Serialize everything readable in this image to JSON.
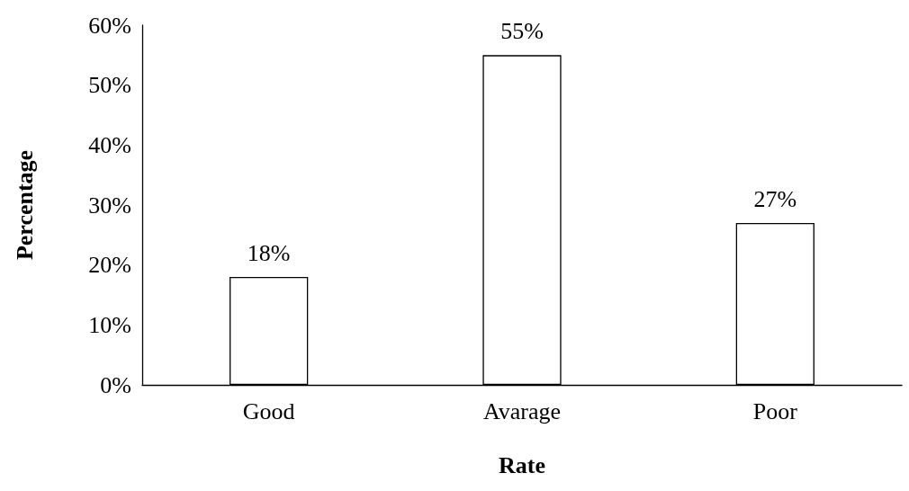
{
  "chart_data": {
    "type": "bar",
    "xlabel": "Rate",
    "ylabel": "Percentage",
    "categories": [
      "Good",
      "Avarage",
      "Poor"
    ],
    "values": [
      18,
      55,
      27
    ],
    "value_labels": [
      "18%",
      "55%",
      "27%"
    ],
    "color": "#ffffff",
    "ylim": [
      0,
      60
    ],
    "yticks": [
      {
        "value": 0,
        "label": "0%"
      },
      {
        "value": 10,
        "label": "10%"
      },
      {
        "value": 20,
        "label": "20%"
      },
      {
        "value": 30,
        "label": "30%"
      },
      {
        "value": 40,
        "label": "40%"
      },
      {
        "value": 50,
        "label": "50%"
      },
      {
        "value": 60,
        "label": "60%"
      }
    ]
  }
}
